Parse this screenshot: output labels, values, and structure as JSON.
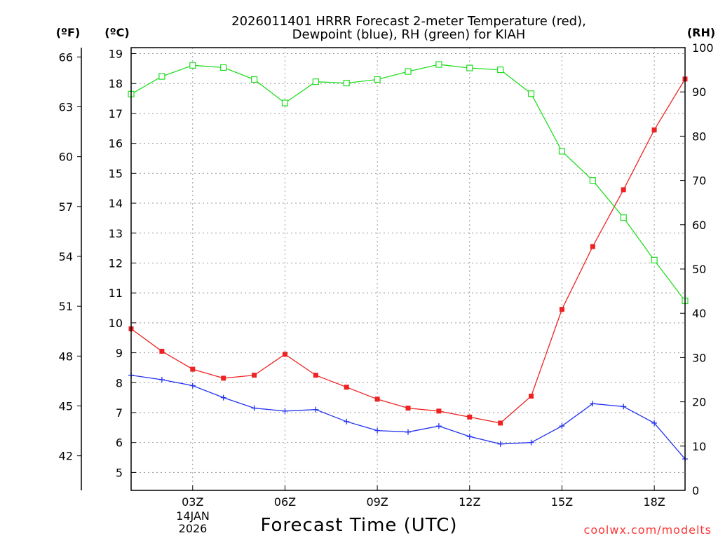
{
  "title_line1": "2026011401 HRRR Forecast 2-meter Temperature (red),",
  "title_line2": "Dewpoint (blue), RH (green) for KIAH",
  "unit_f": "(ºF)",
  "unit_c": "(ºC)",
  "unit_rh": "(RH)",
  "xlabel": "Forecast Time (UTC)",
  "date_day": "14JAN",
  "date_year": "2026",
  "credit": "coolwx.com/modelts",
  "colors": {
    "temperature": "#ee2222",
    "dewpoint": "#2233ee",
    "rh": "#22dd22",
    "grid": "#999999"
  },
  "chart_data": {
    "type": "line",
    "title": "2026011401 HRRR Forecast 2-meter Temperature (red), Dewpoint (blue), RH (green) for KIAH",
    "xlabel": "Forecast Time (UTC)",
    "x_hours_utc": [
      1,
      2,
      3,
      4,
      5,
      6,
      7,
      8,
      9,
      10,
      11,
      12,
      13,
      14,
      15,
      16,
      17,
      18,
      19
    ],
    "x_ticks": [
      {
        "hour": 3,
        "label": "03Z"
      },
      {
        "hour": 6,
        "label": "06Z"
      },
      {
        "hour": 9,
        "label": "09Z"
      },
      {
        "hour": 12,
        "label": "12Z"
      },
      {
        "hour": 15,
        "label": "15Z"
      },
      {
        "hour": 18,
        "label": "18Z"
      }
    ],
    "xlim": [
      1,
      19
    ],
    "y_celsius": {
      "ylim": [
        4.4,
        19.2
      ],
      "ticks": [
        5,
        6,
        7,
        8,
        9,
        10,
        11,
        12,
        13,
        14,
        15,
        16,
        17,
        18,
        19
      ]
    },
    "y_fahrenheit": {
      "ticks": [
        42,
        45,
        48,
        51,
        54,
        57,
        60,
        63,
        66
      ]
    },
    "y_rh": {
      "ylim": [
        0,
        100
      ],
      "ticks": [
        0,
        10,
        20,
        30,
        40,
        50,
        60,
        70,
        80,
        90,
        100
      ]
    },
    "series": [
      {
        "name": "Temperature",
        "unit": "C",
        "axis": "celsius",
        "marker": "filled-square",
        "values": [
          9.8,
          9.05,
          8.45,
          8.15,
          8.25,
          8.95,
          8.25,
          7.85,
          7.45,
          7.15,
          7.05,
          6.85,
          6.65,
          7.55,
          10.45,
          12.55,
          14.45,
          16.45,
          18.15
        ]
      },
      {
        "name": "Dewpoint",
        "unit": "C",
        "axis": "celsius",
        "marker": "plus",
        "values": [
          8.25,
          8.1,
          7.9,
          7.5,
          7.15,
          7.05,
          7.1,
          6.7,
          6.4,
          6.35,
          6.55,
          6.2,
          5.95,
          6.0,
          6.55,
          7.3,
          7.2,
          6.65,
          5.45
        ]
      },
      {
        "name": "RH",
        "unit": "%",
        "axis": "rh",
        "marker": "open-square",
        "values": [
          89.5,
          93.5,
          96,
          95.5,
          92.8,
          87.5,
          92.3,
          92,
          92.8,
          94.6,
          96.2,
          95.4,
          95,
          89.6,
          76.6,
          70,
          61.6,
          52,
          42.8
        ]
      }
    ]
  }
}
